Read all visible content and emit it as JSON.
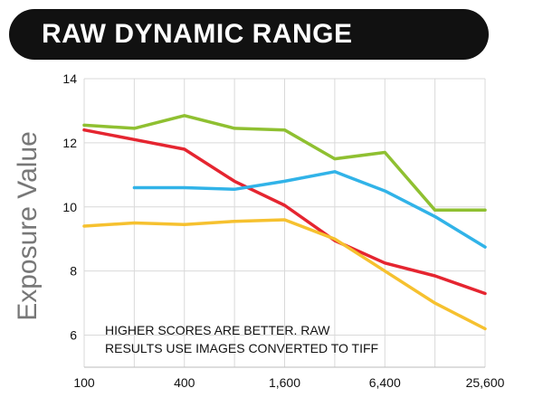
{
  "chart_data": {
    "type": "line",
    "title": "RAW DYNAMIC RANGE",
    "xlabel": "",
    "ylabel": "Exposure Value",
    "xscale": "log2",
    "x_ticks": [
      100,
      400,
      1600,
      6400,
      25600
    ],
    "x_tick_labels": [
      "100",
      "400",
      "1,600",
      "6,400",
      "25,600"
    ],
    "xlim": [
      100,
      25600
    ],
    "ylim": [
      5,
      14
    ],
    "y_ticks": [
      6,
      8,
      10,
      12,
      14
    ],
    "y_tick_labels": [
      "6",
      "8",
      "10",
      "12",
      "14"
    ],
    "grid": true,
    "annotation": [
      "HIGHER SCORES ARE BETTER. RAW",
      "RESULTS USE IMAGES CONVERTED TO TIFF"
    ],
    "series": [
      {
        "color": "#8fc031",
        "x": [
          100,
          200,
          400,
          800,
          1600,
          3200,
          6400,
          12800,
          25600
        ],
        "y": [
          12.55,
          12.45,
          12.85,
          12.45,
          12.4,
          11.5,
          11.7,
          9.9,
          9.9
        ]
      },
      {
        "color": "#e52530",
        "x": [
          100,
          200,
          400,
          800,
          1600,
          3200,
          6400,
          12800,
          25600
        ],
        "y": [
          12.4,
          12.1,
          11.8,
          10.8,
          10.05,
          8.95,
          8.25,
          7.85,
          7.3
        ]
      },
      {
        "color": "#31b3e8",
        "x": [
          200,
          400,
          800,
          1600,
          3200,
          6400,
          12800,
          25600
        ],
        "y": [
          10.6,
          10.6,
          10.55,
          10.8,
          11.1,
          10.5,
          9.7,
          8.75
        ]
      },
      {
        "color": "#f6c12f",
        "x": [
          100,
          200,
          400,
          800,
          1600,
          3200,
          6400,
          12800,
          25600
        ],
        "y": [
          9.4,
          9.5,
          9.45,
          9.55,
          9.6,
          9.0,
          8.0,
          7.0,
          6.2
        ]
      }
    ]
  }
}
